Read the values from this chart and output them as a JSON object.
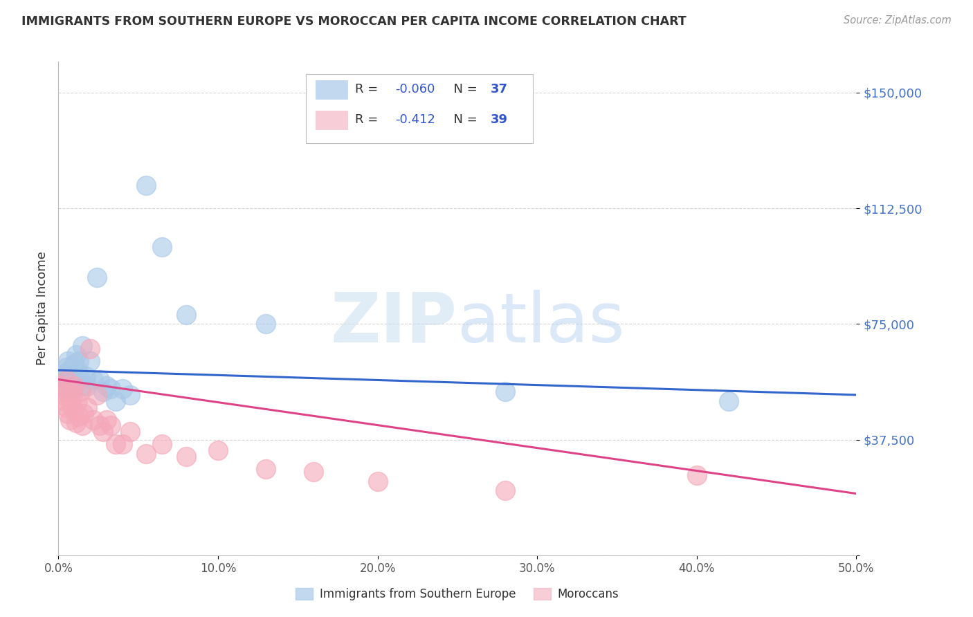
{
  "title": "IMMIGRANTS FROM SOUTHERN EUROPE VS MOROCCAN PER CAPITA INCOME CORRELATION CHART",
  "source": "Source: ZipAtlas.com",
  "ylabel": "Per Capita Income",
  "yticks": [
    0,
    37500,
    75000,
    112500,
    150000
  ],
  "ytick_labels": [
    "",
    "$37,500",
    "$75,000",
    "$112,500",
    "$150,000"
  ],
  "ylim": [
    0,
    160000
  ],
  "xlim": [
    0.0,
    0.5
  ],
  "xticks": [
    0.0,
    0.1,
    0.2,
    0.3,
    0.4,
    0.5
  ],
  "xtick_labels": [
    "0.0%",
    "10.0%",
    "20.0%",
    "30.0%",
    "40.0%",
    "50.0%"
  ],
  "legend_blue_R": "-0.060",
  "legend_blue_N": "37",
  "legend_pink_R": "-0.412",
  "legend_pink_N": "39",
  "blue_scatter_color": "#a8c8e8",
  "pink_scatter_color": "#f4a8b8",
  "blue_line_color": "#3366cc",
  "pink_line_color": "#dd4488",
  "legend_blue_sq": "#a8c8e8",
  "legend_pink_sq": "#f4b8c8",
  "blue_scatter_x": [
    0.002,
    0.003,
    0.004,
    0.005,
    0.005,
    0.006,
    0.006,
    0.007,
    0.007,
    0.008,
    0.009,
    0.01,
    0.01,
    0.011,
    0.012,
    0.013,
    0.014,
    0.015,
    0.016,
    0.017,
    0.018,
    0.02,
    0.022,
    0.024,
    0.026,
    0.028,
    0.03,
    0.033,
    0.036,
    0.04,
    0.045,
    0.055,
    0.065,
    0.08,
    0.13,
    0.28,
    0.42
  ],
  "blue_scatter_y": [
    55000,
    57000,
    59000,
    53000,
    61000,
    58000,
    63000,
    56000,
    60000,
    54000,
    57000,
    62000,
    58000,
    65000,
    60000,
    63000,
    57000,
    68000,
    55000,
    58000,
    55000,
    63000,
    57000,
    90000,
    57000,
    53000,
    55000,
    54000,
    50000,
    54000,
    52000,
    120000,
    100000,
    78000,
    75000,
    53000,
    50000
  ],
  "pink_scatter_x": [
    0.002,
    0.003,
    0.004,
    0.005,
    0.005,
    0.006,
    0.006,
    0.007,
    0.007,
    0.008,
    0.009,
    0.01,
    0.01,
    0.011,
    0.012,
    0.013,
    0.014,
    0.015,
    0.016,
    0.018,
    0.02,
    0.022,
    0.024,
    0.026,
    0.028,
    0.03,
    0.033,
    0.036,
    0.04,
    0.045,
    0.055,
    0.065,
    0.08,
    0.1,
    0.13,
    0.16,
    0.2,
    0.28,
    0.4
  ],
  "pink_scatter_y": [
    55000,
    52000,
    50000,
    57000,
    48000,
    54000,
    46000,
    51000,
    44000,
    49000,
    52000,
    47000,
    55000,
    43000,
    50000,
    45000,
    53000,
    42000,
    46000,
    48000,
    67000,
    44000,
    52000,
    42000,
    40000,
    44000,
    42000,
    36000,
    36000,
    40000,
    33000,
    36000,
    32000,
    34000,
    28000,
    27000,
    24000,
    21000,
    26000
  ],
  "blue_trend_x0": 0.0,
  "blue_trend_y0": 60000,
  "blue_trend_x1": 0.5,
  "blue_trend_y1": 52000,
  "pink_trend_x0": 0.0,
  "pink_trend_y0": 57000,
  "pink_trend_x1": 0.5,
  "pink_trend_y1": 20000,
  "background_color": "#ffffff",
  "grid_color": "#cccccc",
  "tick_color": "#4472c4",
  "title_color": "#333333",
  "source_color": "#999999",
  "label_color": "#555555"
}
